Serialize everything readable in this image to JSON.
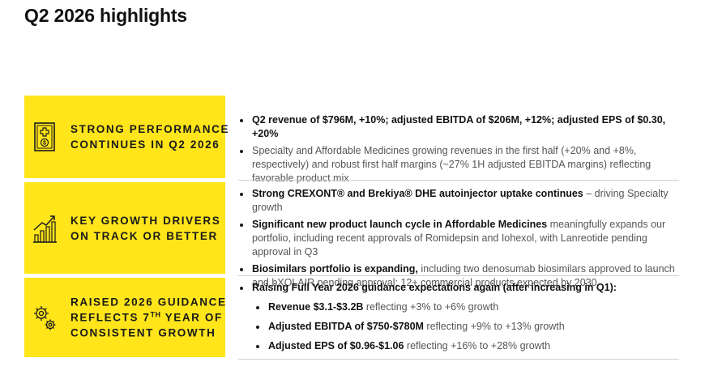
{
  "slide": {
    "title": "Q2 2026 highlights"
  },
  "rows": [
    {
      "icon": "medicine-bottle-icon",
      "label_lines": [
        "STRONG PERFORMANCE",
        "CONTINUES IN Q2 2026"
      ],
      "bullets": [
        {
          "strong": "Q2 revenue of $796M, +10%; adjusted EBITDA of $206M, +12%; adjusted EPS of $0.30, +20%",
          "light": ""
        },
        {
          "strong": "",
          "light": "Specialty and Affordable Medicines growing revenues in the first half (+20% and +8%, respectively) and robust first half margins (~27% 1H adjusted EBITDA margins) reflecting favorable product mix"
        }
      ]
    },
    {
      "icon": "growth-chart-icon",
      "label_lines": [
        "KEY GROWTH DRIVERS",
        "ON TRACK OR BETTER"
      ],
      "bullets": [
        {
          "strong": "Strong CREXONT® and Brekiya® DHE autoinjector uptake continues",
          "light": " – driving Specialty growth"
        },
        {
          "strong": "Significant new product launch cycle in Affordable Medicines",
          "light": " meaningfully expands our portfolio, including recent approvals of Romidepsin and Iohexol, with Lanreotide pending approval in Q3"
        },
        {
          "strong": "Biosimilars portfolio is expanding,",
          "light": " including two denosumab biosimilars approved to launch and bXOLAIR pending approval; 12+ commercial products expected by 2030"
        }
      ]
    },
    {
      "icon": "gears-icon",
      "label_line1": "RAISED 2026 GUIDANCE",
      "label_line2_pre": "REFLECTS 7",
      "label_line2_sup": "TH",
      "label_line2_post": " YEAR OF",
      "label_line3": "CONSISTENT GROWTH",
      "bullet": {
        "strong": "Raising Full Year 2026 guidance expectations again (after increasing in Q1):"
      },
      "sub_bullets": [
        {
          "strong": "Revenue $3.1-$3.2B",
          "light": " reflecting +3% to +6% growth"
        },
        {
          "strong": "Adjusted EBITDA of $750-$780M",
          "light": " reflecting +9% to +13% growth"
        },
        {
          "strong": "Adjusted EPS of $0.96-$1.06",
          "light": " reflecting +16% to +28% growth"
        }
      ]
    }
  ]
}
